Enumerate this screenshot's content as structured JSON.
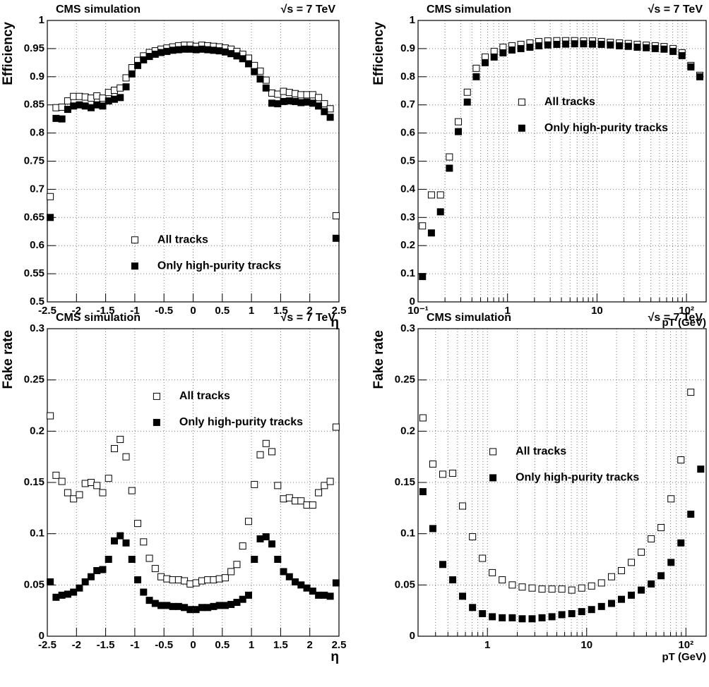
{
  "chart_data": [
    {
      "type": "scatter",
      "title": "CMS simulation",
      "subtitle": "√s = 7 TeV",
      "x_label": "η",
      "y_label": "Efficiency",
      "xlim": [
        -2.5,
        2.5
      ],
      "xticks": [
        -2.5,
        -2,
        -1.5,
        -1,
        -0.5,
        0,
        0.5,
        1,
        1.5,
        2,
        2.5
      ],
      "ylim": [
        0.5,
        1
      ],
      "yticks": [
        0.5,
        0.55,
        0.6,
        0.65,
        0.7,
        0.75,
        0.8,
        0.85,
        0.9,
        0.95,
        1
      ],
      "grid": true,
      "legend_position": "lower center",
      "x": [
        -2.45,
        -2.35,
        -2.25,
        -2.15,
        -2.05,
        -1.95,
        -1.85,
        -1.75,
        -1.65,
        -1.55,
        -1.45,
        -1.35,
        -1.25,
        -1.15,
        -1.05,
        -0.95,
        -0.85,
        -0.75,
        -0.65,
        -0.55,
        -0.45,
        -0.35,
        -0.25,
        -0.15,
        -0.05,
        0.05,
        0.15,
        0.25,
        0.35,
        0.45,
        0.55,
        0.65,
        0.75,
        0.85,
        0.95,
        1.05,
        1.15,
        1.25,
        1.35,
        1.45,
        1.55,
        1.65,
        1.75,
        1.85,
        1.95,
        2.05,
        2.15,
        2.25,
        2.35,
        2.45
      ],
      "series": [
        {
          "name": "All tracks",
          "color": "#000000",
          "marker": "open-square",
          "values": [
            0.687,
            0.845,
            0.846,
            0.857,
            0.865,
            0.865,
            0.864,
            0.862,
            0.866,
            0.862,
            0.872,
            0.876,
            0.88,
            0.898,
            0.916,
            0.929,
            0.937,
            0.943,
            0.946,
            0.949,
            0.951,
            0.953,
            0.955,
            0.956,
            0.956,
            0.954,
            0.956,
            0.955,
            0.954,
            0.953,
            0.951,
            0.949,
            0.945,
            0.94,
            0.933,
            0.92,
            0.91,
            0.894,
            0.871,
            0.869,
            0.874,
            0.872,
            0.87,
            0.868,
            0.868,
            0.868,
            0.863,
            0.852,
            0.843,
            0.653
          ]
        },
        {
          "name": "Only high-purity tracks",
          "color": "#000000",
          "marker": "filled-square",
          "values": [
            0.65,
            0.826,
            0.825,
            0.842,
            0.848,
            0.85,
            0.848,
            0.845,
            0.85,
            0.848,
            0.857,
            0.86,
            0.863,
            0.882,
            0.905,
            0.92,
            0.93,
            0.936,
            0.94,
            0.943,
            0.945,
            0.947,
            0.948,
            0.949,
            0.949,
            0.948,
            0.949,
            0.948,
            0.947,
            0.946,
            0.944,
            0.941,
            0.937,
            0.932,
            0.923,
            0.909,
            0.896,
            0.88,
            0.853,
            0.852,
            0.856,
            0.857,
            0.856,
            0.854,
            0.855,
            0.853,
            0.848,
            0.838,
            0.828,
            0.613
          ]
        }
      ]
    },
    {
      "type": "scatter",
      "title": "CMS simulation",
      "subtitle": "√s = 7 TeV",
      "x_label": "pT (GeV)",
      "y_label": "Efficiency",
      "xscale": "log",
      "xlim": [
        0.1,
        166
      ],
      "xticks": [
        {
          "value": 0.1,
          "label": "10⁻¹"
        },
        1,
        10,
        {
          "value": 100,
          "label": "10²"
        }
      ],
      "x_minor_ticks": [
        0.2,
        0.3,
        0.4,
        0.5,
        0.6,
        0.7,
        0.8,
        0.9,
        2,
        3,
        4,
        5,
        6,
        7,
        8,
        9,
        20,
        30,
        40,
        50,
        60,
        70,
        80,
        90
      ],
      "ylim": [
        0,
        1
      ],
      "yticks": [
        0,
        0.1,
        0.2,
        0.3,
        0.4,
        0.5,
        0.6,
        0.7,
        0.8,
        0.9,
        1
      ],
      "grid": true,
      "legend_position": "center right",
      "x": [
        0.112,
        0.141,
        0.178,
        0.224,
        0.282,
        0.355,
        0.447,
        0.562,
        0.708,
        0.891,
        1.12,
        1.41,
        1.78,
        2.24,
        2.82,
        3.55,
        4.47,
        5.62,
        7.08,
        8.91,
        11.2,
        14.1,
        17.8,
        22.4,
        28.2,
        35.5,
        44.7,
        56.2,
        70.8,
        89.1,
        112,
        141
      ],
      "series": [
        {
          "name": "All tracks",
          "color": "#000000",
          "marker": "open-square",
          "values": [
            0.27,
            0.38,
            0.38,
            0.515,
            0.64,
            0.745,
            0.83,
            0.87,
            0.89,
            0.905,
            0.91,
            0.915,
            0.92,
            0.925,
            0.927,
            0.928,
            0.928,
            0.928,
            0.927,
            0.927,
            0.925,
            0.922,
            0.92,
            0.918,
            0.915,
            0.912,
            0.91,
            0.907,
            0.9,
            0.885,
            0.84,
            0.805
          ]
        },
        {
          "name": "Only high-purity tracks",
          "color": "#000000",
          "marker": "filled-square",
          "values": [
            0.09,
            0.245,
            0.32,
            0.475,
            0.605,
            0.71,
            0.8,
            0.85,
            0.87,
            0.885,
            0.895,
            0.9,
            0.905,
            0.91,
            0.913,
            0.915,
            0.916,
            0.917,
            0.917,
            0.916,
            0.915,
            0.913,
            0.91,
            0.908,
            0.905,
            0.903,
            0.9,
            0.898,
            0.89,
            0.875,
            0.835,
            0.8
          ]
        }
      ]
    },
    {
      "type": "scatter",
      "title": "CMS simulation",
      "subtitle": "√s = 7 TeV",
      "x_label": "η",
      "y_label": "Fake rate",
      "xlim": [
        -2.5,
        2.5
      ],
      "xticks": [
        -2.5,
        -2,
        -1.5,
        -1,
        -0.5,
        0,
        0.5,
        1,
        1.5,
        2,
        2.5
      ],
      "ylim": [
        0,
        0.3
      ],
      "yticks": [
        0,
        0.05,
        0.1,
        0.15,
        0.2,
        0.25,
        0.3
      ],
      "grid": true,
      "legend_position": "upper right",
      "x": [
        -2.45,
        -2.35,
        -2.25,
        -2.15,
        -2.05,
        -1.95,
        -1.85,
        -1.75,
        -1.65,
        -1.55,
        -1.45,
        -1.35,
        -1.25,
        -1.15,
        -1.05,
        -0.95,
        -0.85,
        -0.75,
        -0.65,
        -0.55,
        -0.45,
        -0.35,
        -0.25,
        -0.15,
        -0.05,
        0.05,
        0.15,
        0.25,
        0.35,
        0.45,
        0.55,
        0.65,
        0.75,
        0.85,
        0.95,
        1.05,
        1.15,
        1.25,
        1.35,
        1.45,
        1.55,
        1.65,
        1.75,
        1.85,
        1.95,
        2.05,
        2.15,
        2.25,
        2.35,
        2.45
      ],
      "series": [
        {
          "name": "All tracks",
          "color": "#000000",
          "marker": "open-square",
          "values": [
            0.215,
            0.157,
            0.151,
            0.14,
            0.134,
            0.138,
            0.149,
            0.15,
            0.147,
            0.14,
            0.154,
            0.183,
            0.192,
            0.175,
            0.142,
            0.11,
            0.092,
            0.076,
            0.066,
            0.058,
            0.056,
            0.055,
            0.055,
            0.054,
            0.051,
            0.052,
            0.054,
            0.055,
            0.055,
            0.056,
            0.057,
            0.063,
            0.07,
            0.088,
            0.112,
            0.148,
            0.177,
            0.188,
            0.18,
            0.147,
            0.134,
            0.135,
            0.132,
            0.132,
            0.128,
            0.128,
            0.14,
            0.147,
            0.151,
            0.204
          ]
        },
        {
          "name": "Only high-purity tracks",
          "color": "#000000",
          "marker": "filled-square",
          "values": [
            0.053,
            0.038,
            0.04,
            0.041,
            0.043,
            0.047,
            0.053,
            0.058,
            0.064,
            0.065,
            0.075,
            0.093,
            0.098,
            0.091,
            0.075,
            0.055,
            0.043,
            0.035,
            0.032,
            0.03,
            0.03,
            0.029,
            0.029,
            0.028,
            0.026,
            0.026,
            0.028,
            0.028,
            0.029,
            0.03,
            0.03,
            0.031,
            0.033,
            0.036,
            0.04,
            0.075,
            0.095,
            0.097,
            0.09,
            0.075,
            0.063,
            0.058,
            0.053,
            0.05,
            0.047,
            0.044,
            0.04,
            0.04,
            0.039,
            0.052
          ]
        }
      ]
    },
    {
      "type": "scatter",
      "title": "CMS simulation",
      "subtitle": "√s = 7 TeV",
      "x_label": "pT (GeV)",
      "y_label": "Fake rate",
      "xscale": "log",
      "xlim": [
        0.2,
        160
      ],
      "xticks": [
        1,
        10,
        {
          "value": 100,
          "label": "10²"
        }
      ],
      "x_minor_ticks": [
        0.3,
        0.4,
        0.5,
        0.6,
        0.7,
        0.8,
        0.9,
        2,
        3,
        4,
        5,
        6,
        7,
        8,
        9,
        20,
        30,
        40,
        50,
        60,
        70,
        80,
        90
      ],
      "ylim": [
        0,
        0.3
      ],
      "yticks": [
        0,
        0.05,
        0.1,
        0.15,
        0.2,
        0.25,
        0.3
      ],
      "grid": true,
      "legend_position": "upper center",
      "x": [
        0.224,
        0.282,
        0.355,
        0.447,
        0.562,
        0.708,
        0.891,
        1.12,
        1.41,
        1.78,
        2.24,
        2.82,
        3.55,
        4.47,
        5.62,
        7.08,
        8.91,
        11.2,
        14.1,
        17.8,
        22.4,
        28.2,
        35.5,
        44.7,
        56.2,
        70.8,
        89.1,
        112,
        141
      ],
      "series": [
        {
          "name": "All tracks",
          "color": "#000000",
          "marker": "open-square",
          "values": [
            0.213,
            0.168,
            0.158,
            0.159,
            0.127,
            0.097,
            0.076,
            0.062,
            0.055,
            0.05,
            0.048,
            0.047,
            0.046,
            0.046,
            0.046,
            0.045,
            0.047,
            0.049,
            0.052,
            0.058,
            0.064,
            0.072,
            0.082,
            0.095,
            0.106,
            0.134,
            0.172,
            0.238,
            null
          ]
        },
        {
          "name": "Only high-purity tracks",
          "color": "#000000",
          "marker": "filled-square",
          "values": [
            0.141,
            0.105,
            0.07,
            0.055,
            0.039,
            0.028,
            0.022,
            0.019,
            0.018,
            0.018,
            0.017,
            0.017,
            0.018,
            0.019,
            0.021,
            0.022,
            0.024,
            0.026,
            0.029,
            0.032,
            0.036,
            0.04,
            0.045,
            0.051,
            0.059,
            0.072,
            0.091,
            0.119,
            0.163
          ]
        }
      ]
    }
  ]
}
